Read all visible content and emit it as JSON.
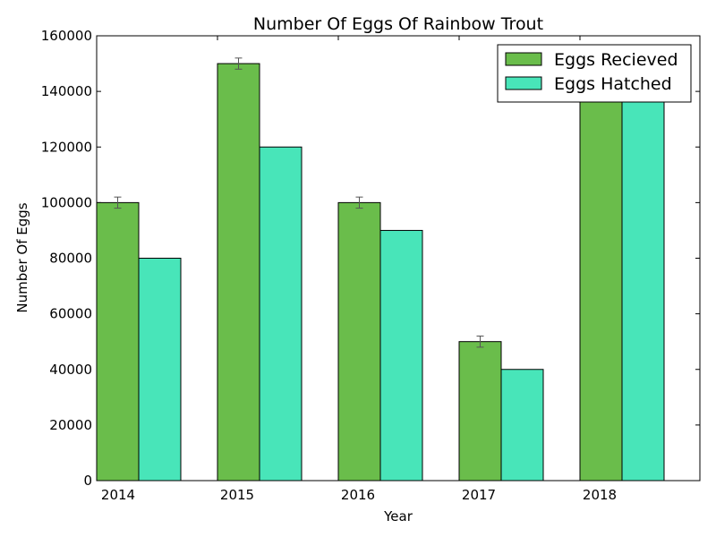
{
  "chart_data": {
    "type": "bar",
    "title": "Number Of Eggs Of Rainbow Trout",
    "xlabel": "Year",
    "ylabel": "Number Of Eggs",
    "categories": [
      "2014",
      "2015",
      "2016",
      "2017",
      "2018"
    ],
    "ylim": [
      0,
      160000
    ],
    "yticks": [
      0,
      20000,
      40000,
      60000,
      80000,
      100000,
      120000,
      140000,
      160000
    ],
    "legend_position": "top-right",
    "grid": false,
    "series": [
      {
        "name": "Eggs Recieved",
        "color": "#6abd4b",
        "values": [
          100000,
          150000,
          100000,
          50000,
          140000
        ],
        "error": [
          2000,
          2000,
          2000,
          2000,
          2000
        ]
      },
      {
        "name": "Eggs Hatched",
        "color": "#48e5b9",
        "values": [
          80000,
          120000,
          90000,
          40000,
          140000
        ]
      }
    ]
  }
}
